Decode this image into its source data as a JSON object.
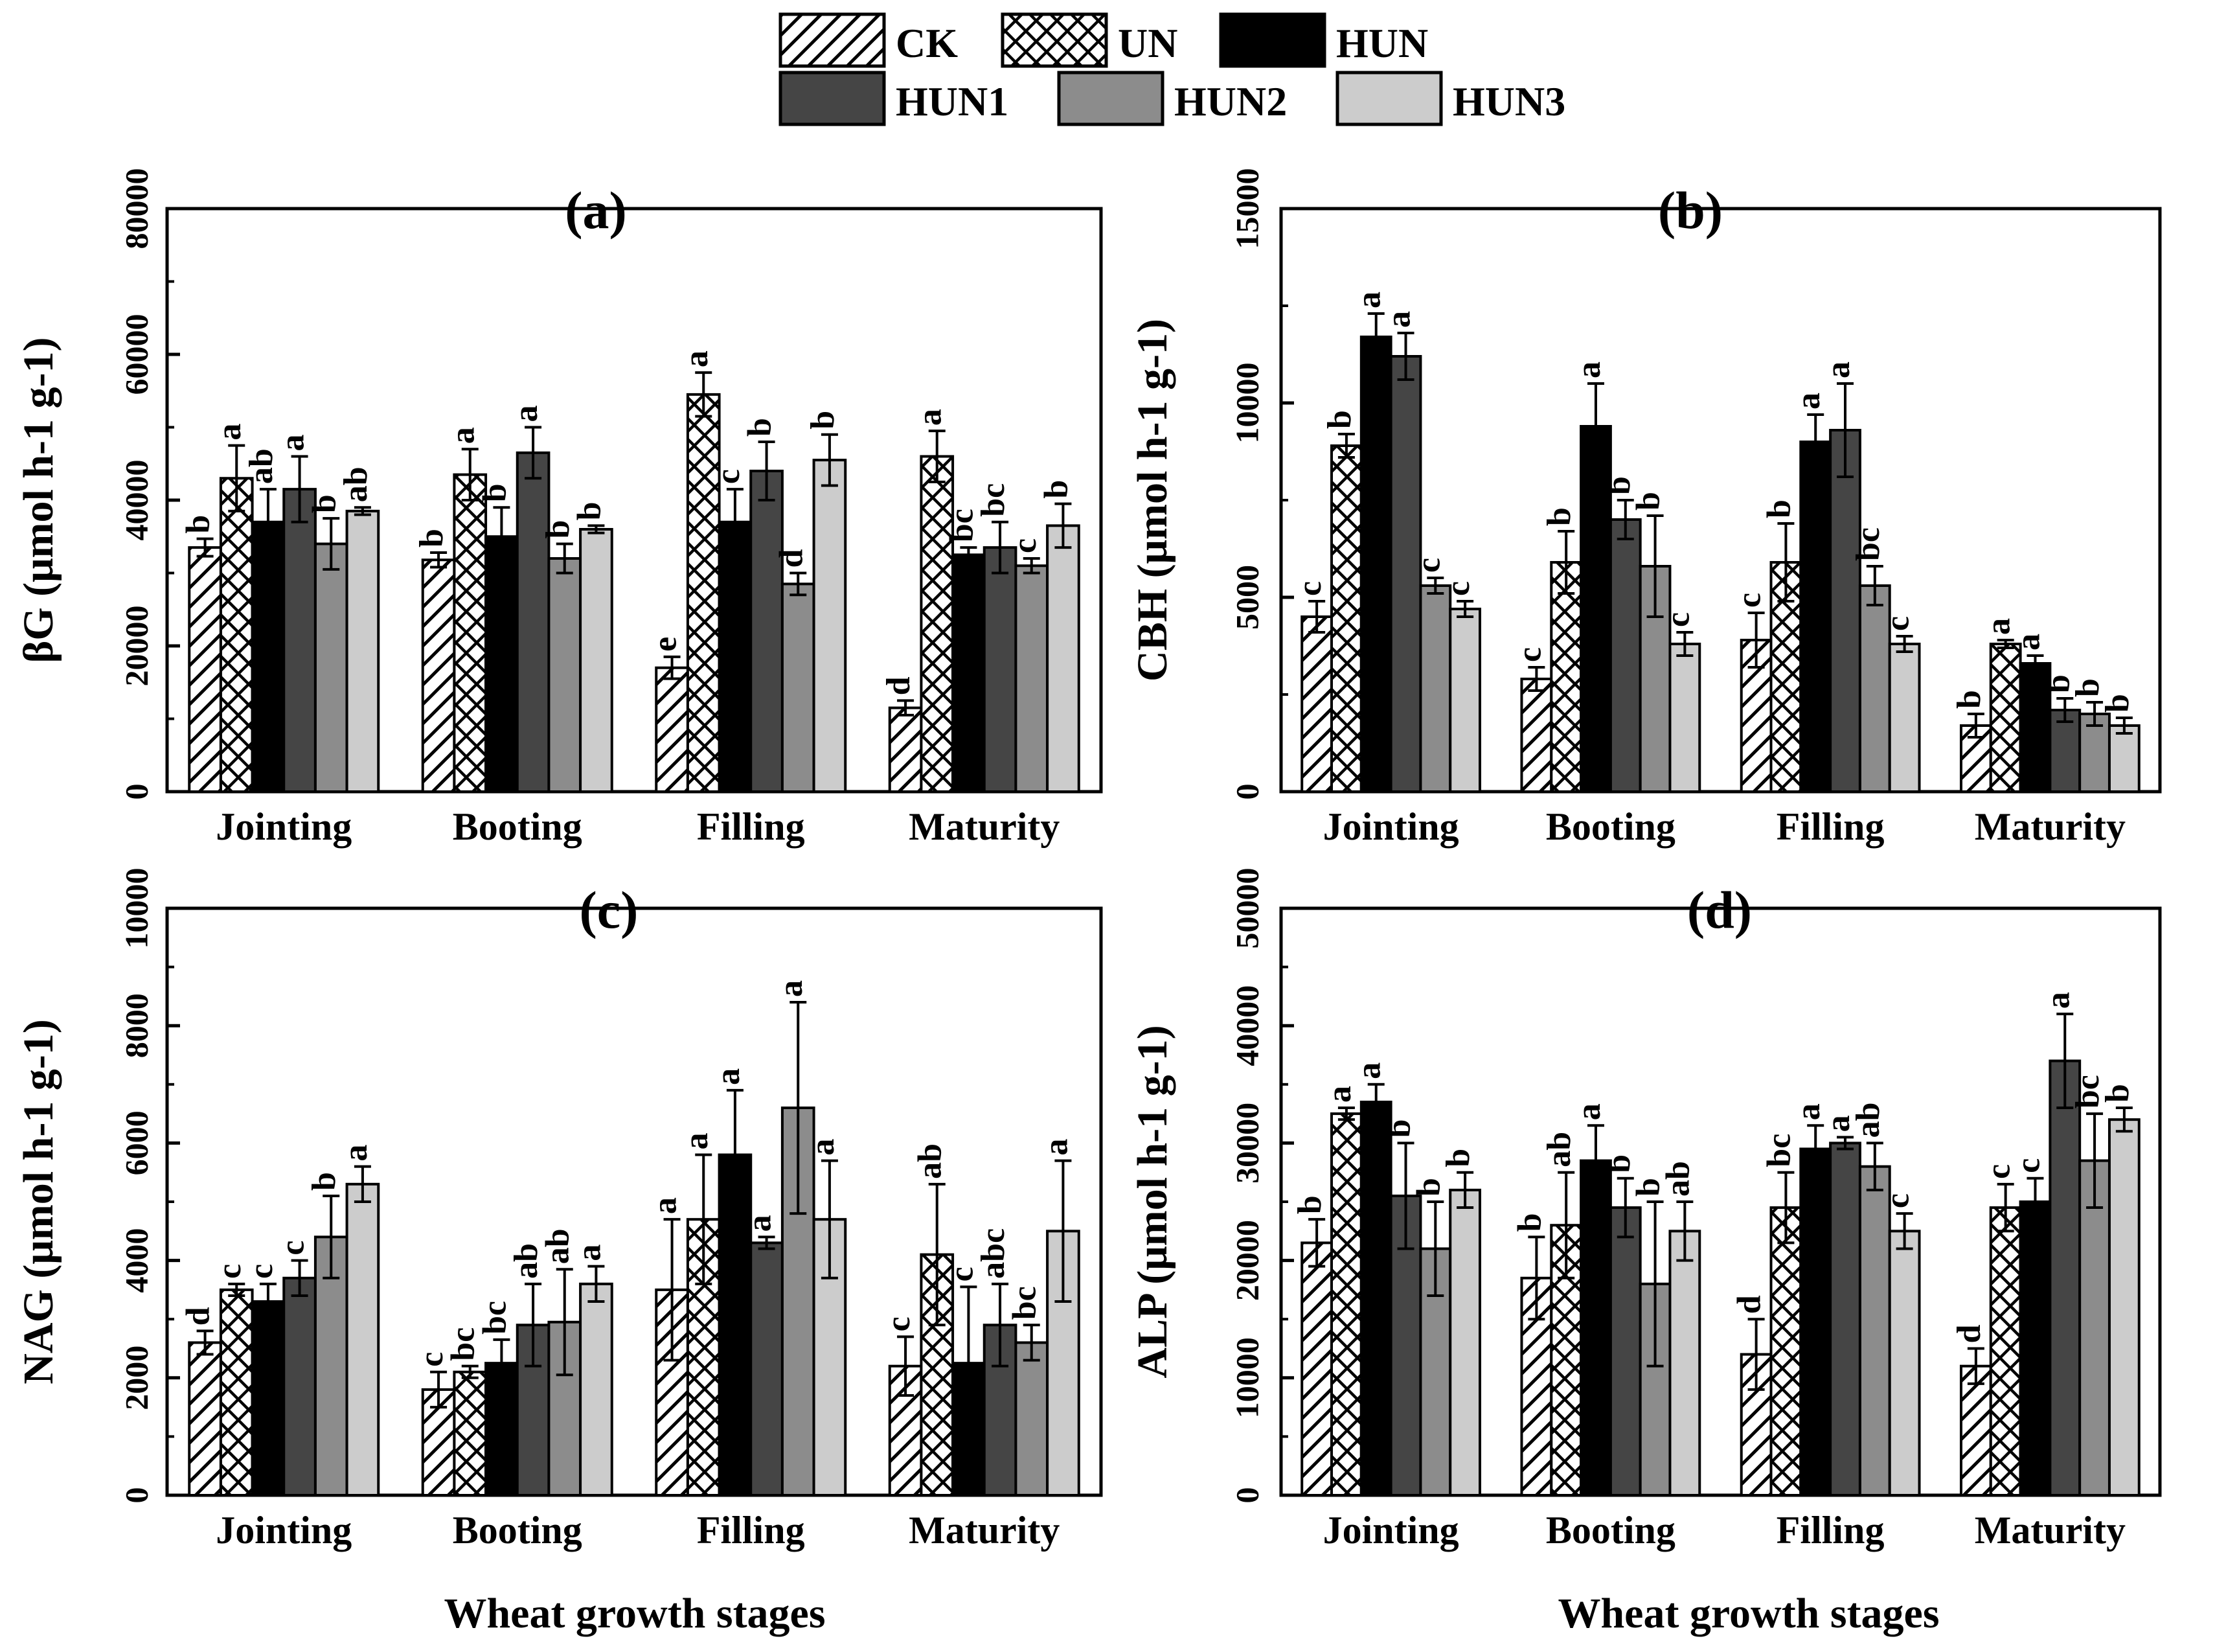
{
  "legend": [
    {
      "name": "CK",
      "fill": "hatch-diag"
    },
    {
      "name": "UN",
      "fill": "hatch-cross"
    },
    {
      "name": "HUN",
      "fill": "#000000"
    },
    {
      "name": "HUN1",
      "fill": "#454545"
    },
    {
      "name": "HUN2",
      "fill": "#8c8c8c"
    },
    {
      "name": "HUN3",
      "fill": "#cccccc"
    }
  ],
  "xlabel": "Wheat growth stages",
  "chart_data": [
    {
      "type": "bar",
      "title": "(a)",
      "ylabel": "βG (μmol h-1 g-1)",
      "categories": [
        "Jointing",
        "Booting",
        "Filling",
        "Maturity"
      ],
      "ylim": [
        0,
        80000
      ],
      "yticks": [
        0,
        20000,
        40000,
        60000,
        80000
      ],
      "series": [
        {
          "name": "CK",
          "values": [
            33500,
            31800,
            17000,
            11500
          ],
          "errors": [
            1200,
            1000,
            1500,
            1000
          ],
          "letters": [
            "b",
            "b",
            "e",
            "d"
          ]
        },
        {
          "name": "UN",
          "values": [
            43000,
            43500,
            54500,
            46000
          ],
          "errors": [
            4500,
            3500,
            3000,
            3500
          ],
          "letters": [
            "a",
            "a",
            "a",
            "a"
          ]
        },
        {
          "name": "HUN",
          "values": [
            37000,
            35000,
            37000,
            32500
          ],
          "errors": [
            4500,
            4000,
            4500,
            1000
          ],
          "letters": [
            "ab",
            "b",
            "c",
            "bc"
          ]
        },
        {
          "name": "HUN1",
          "values": [
            41500,
            46500,
            44000,
            33500
          ],
          "errors": [
            4500,
            3500,
            4000,
            3500
          ],
          "letters": [
            "a",
            "a",
            "b",
            "bc"
          ]
        },
        {
          "name": "HUN2",
          "values": [
            34000,
            32000,
            28500,
            31000
          ],
          "errors": [
            3500,
            2000,
            1500,
            1000
          ],
          "letters": [
            "b",
            "b",
            "d",
            "c"
          ]
        },
        {
          "name": "HUN3",
          "values": [
            38500,
            36000,
            45500,
            36500
          ],
          "errors": [
            500,
            500,
            3500,
            3000
          ],
          "letters": [
            "ab",
            "b",
            "b",
            "b"
          ]
        }
      ]
    },
    {
      "type": "bar",
      "title": "(b)",
      "ylabel": "CBH (μmol h-1 g-1)",
      "categories": [
        "Jointing",
        "Booting",
        "Filling",
        "Maturity"
      ],
      "ylim": [
        0,
        15000
      ],
      "yticks": [
        0,
        5000,
        10000,
        15000
      ],
      "series": [
        {
          "name": "CK",
          "values": [
            4500,
            2900,
            3900,
            1700
          ],
          "errors": [
            400,
            300,
            700,
            300
          ],
          "letters": [
            "c",
            "c",
            "c",
            "b"
          ]
        },
        {
          "name": "UN",
          "values": [
            8900,
            5900,
            5900,
            3800
          ],
          "errors": [
            300,
            800,
            1000,
            100
          ],
          "letters": [
            "b",
            "b",
            "b",
            "a"
          ]
        },
        {
          "name": "HUN",
          "values": [
            11700,
            9400,
            9000,
            3300
          ],
          "errors": [
            600,
            1100,
            700,
            200
          ],
          "letters": [
            "a",
            "a",
            "a",
            "a"
          ]
        },
        {
          "name": "HUN1",
          "values": [
            11200,
            7000,
            9300,
            2100
          ],
          "errors": [
            600,
            500,
            1200,
            300
          ],
          "letters": [
            "a",
            "b",
            "a",
            "b"
          ]
        },
        {
          "name": "HUN2",
          "values": [
            5300,
            5800,
            5300,
            2000
          ],
          "errors": [
            200,
            1300,
            500,
            300
          ],
          "letters": [
            "c",
            "b",
            "bc",
            "b"
          ]
        },
        {
          "name": "HUN3",
          "values": [
            4700,
            3800,
            3800,
            1700
          ],
          "errors": [
            200,
            300,
            200,
            200
          ],
          "letters": [
            "c",
            "c",
            "c",
            "b"
          ]
        }
      ]
    },
    {
      "type": "bar",
      "title": "(c)",
      "ylabel": "NAG (μmol h-1 g-1)",
      "categories": [
        "Jointing",
        "Booting",
        "Filling",
        "Maturity"
      ],
      "ylim": [
        0,
        10000
      ],
      "yticks": [
        0,
        2000,
        4000,
        6000,
        8000,
        10000
      ],
      "series": [
        {
          "name": "CK",
          "values": [
            2600,
            1800,
            3500,
            2200
          ],
          "errors": [
            200,
            300,
            1200,
            500
          ],
          "letters": [
            "d",
            "c",
            "a",
            "c"
          ]
        },
        {
          "name": "UN",
          "values": [
            3500,
            2100,
            4700,
            4100
          ],
          "errors": [
            100,
            100,
            1100,
            1200
          ],
          "letters": [
            "c",
            "bc",
            "a",
            "ab"
          ]
        },
        {
          "name": "HUN",
          "values": [
            3300,
            2250,
            5800,
            2250
          ],
          "errors": [
            300,
            400,
            1100,
            1300
          ],
          "letters": [
            "c",
            "bc",
            "a",
            "c"
          ]
        },
        {
          "name": "HUN1",
          "values": [
            3700,
            2900,
            4300,
            2900
          ],
          "errors": [
            300,
            700,
            100,
            700
          ],
          "letters": [
            "c",
            "ab",
            "a",
            "abc"
          ]
        },
        {
          "name": "HUN2",
          "values": [
            4400,
            2950,
            6600,
            2600
          ],
          "errors": [
            700,
            900,
            1800,
            300
          ],
          "letters": [
            "b",
            "ab",
            "a",
            "bc"
          ]
        },
        {
          "name": "HUN3",
          "values": [
            5300,
            3600,
            4700,
            4500
          ],
          "errors": [
            300,
            300,
            1000,
            1200
          ],
          "letters": [
            "a",
            "a",
            "a",
            "a"
          ]
        }
      ]
    },
    {
      "type": "bar",
      "title": "(d)",
      "ylabel": "ALP (μmol h-1 g-1)",
      "categories": [
        "Jointing",
        "Booting",
        "Filling",
        "Maturity"
      ],
      "ylim": [
        0,
        50000
      ],
      "yticks": [
        0,
        10000,
        20000,
        30000,
        40000,
        50000
      ],
      "series": [
        {
          "name": "CK",
          "values": [
            21500,
            18500,
            12000,
            11000
          ],
          "errors": [
            2000,
            3500,
            3000,
            1500
          ],
          "letters": [
            "b",
            "b",
            "d",
            "d"
          ]
        },
        {
          "name": "UN",
          "values": [
            32500,
            23000,
            24500,
            24500
          ],
          "errors": [
            500,
            4500,
            3000,
            2000
          ],
          "letters": [
            "a",
            "ab",
            "bc",
            "c"
          ]
        },
        {
          "name": "HUN",
          "values": [
            33500,
            28500,
            29500,
            25000
          ],
          "errors": [
            1500,
            3000,
            2000,
            2000
          ],
          "letters": [
            "a",
            "a",
            "a",
            "c"
          ]
        },
        {
          "name": "HUN1",
          "values": [
            25500,
            24500,
            30000,
            37000
          ],
          "errors": [
            4500,
            2500,
            500,
            4000
          ],
          "letters": [
            "b",
            "b",
            "a",
            "a"
          ]
        },
        {
          "name": "HUN2",
          "values": [
            21000,
            18000,
            28000,
            28500
          ],
          "errors": [
            4000,
            7000,
            2000,
            4000
          ],
          "letters": [
            "b",
            "b",
            "ab",
            "bc"
          ]
        },
        {
          "name": "HUN3",
          "values": [
            26000,
            22500,
            22500,
            32000
          ],
          "errors": [
            1500,
            2500,
            1500,
            1000
          ],
          "letters": [
            "b",
            "ab",
            "c",
            "b"
          ]
        }
      ]
    }
  ]
}
